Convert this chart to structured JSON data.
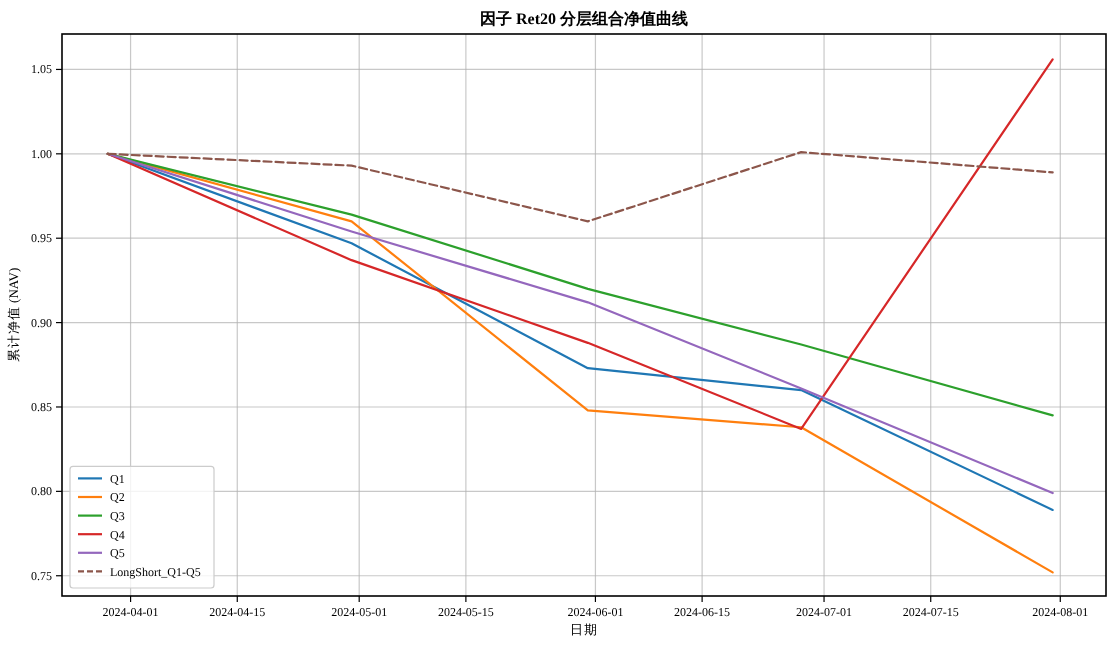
{
  "chart_data": {
    "type": "line",
    "title": "因子 Ret20 分层组合净值曲线",
    "xlabel": "日期",
    "ylabel": "累计净值 (NAV)",
    "x": [
      "2024-03-29",
      "2024-04-30",
      "2024-05-31",
      "2024-06-28",
      "2024-07-31"
    ],
    "series": [
      {
        "name": "Q1",
        "color": "#1f77b4",
        "values": [
          1.0,
          0.947,
          0.873,
          0.86,
          0.789
        ]
      },
      {
        "name": "Q2",
        "color": "#ff7f0e",
        "values": [
          1.0,
          0.96,
          0.848,
          0.838,
          0.752
        ]
      },
      {
        "name": "Q3",
        "color": "#2ca02c",
        "values": [
          1.0,
          0.964,
          0.92,
          0.887,
          0.845
        ]
      },
      {
        "name": "Q4",
        "color": "#d62728",
        "values": [
          1.0,
          0.937,
          0.888,
          0.837,
          1.056
        ]
      },
      {
        "name": "Q5",
        "color": "#9467bd",
        "values": [
          1.0,
          0.954,
          0.912,
          0.861,
          0.799
        ]
      },
      {
        "name": "LongShort_Q1-Q5",
        "color": "#8c564b",
        "line_style": "dashed",
        "values": [
          1.0,
          0.993,
          0.96,
          1.001,
          0.989
        ]
      }
    ],
    "xlim": [
      "2024-03-23",
      "2024-08-07"
    ],
    "xticks": [
      "2024-04-01",
      "2024-04-15",
      "2024-05-01",
      "2024-05-15",
      "2024-06-01",
      "2024-06-15",
      "2024-07-01",
      "2024-07-15",
      "2024-08-01"
    ],
    "ylim": [
      0.738,
      1.071
    ],
    "yticks": [
      {
        "value": 0.75,
        "label": "0.75"
      },
      {
        "value": 0.8,
        "label": "0.80"
      },
      {
        "value": 0.85,
        "label": "0.85"
      },
      {
        "value": 0.9,
        "label": "0.90"
      },
      {
        "value": 0.95,
        "label": "0.95"
      },
      {
        "value": 1.0,
        "label": "1.00"
      },
      {
        "value": 1.05,
        "label": "1.05"
      }
    ],
    "grid": true,
    "legend": "bottom left",
    "line_style": "solid",
    "marker": "none"
  }
}
